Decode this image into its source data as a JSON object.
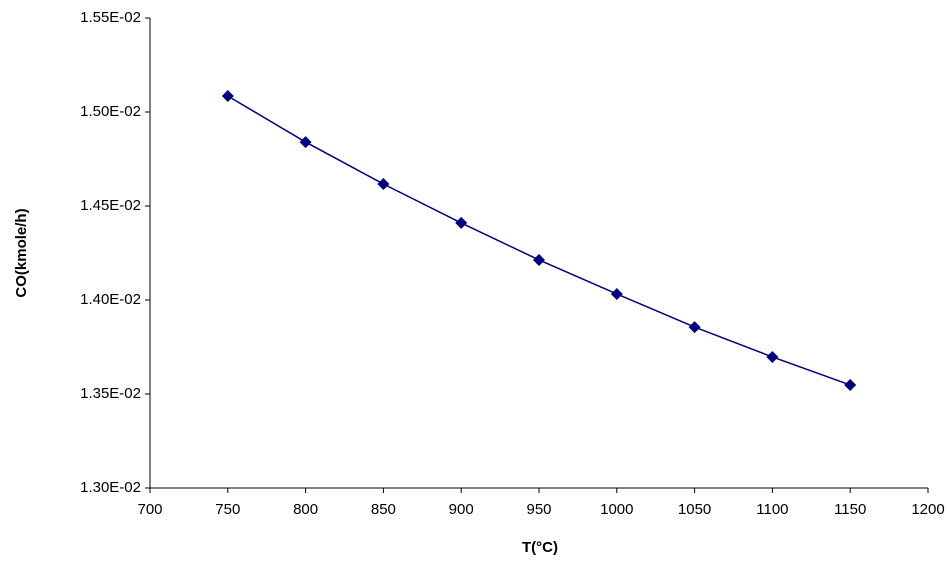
{
  "chart_data": {
    "type": "line",
    "x_label": "T(°C)",
    "y_label": "CO(kmole/h)",
    "x": [
      750,
      800,
      850,
      900,
      950,
      1000,
      1050,
      1100,
      1150
    ],
    "series": [
      {
        "name": "CO",
        "color": "#000080",
        "values": [
          0.015085,
          0.01484,
          0.014617,
          0.01441,
          0.014213,
          0.014032,
          0.013856,
          0.013697,
          0.013548
        ]
      }
    ],
    "xlim": [
      700,
      1200
    ],
    "xticks": [
      700,
      750,
      800,
      850,
      900,
      950,
      1000,
      1050,
      1100,
      1150,
      1200
    ],
    "ylim": [
      0.013,
      0.0155
    ],
    "yticks": [
      {
        "value": 0.013,
        "label": "1.30E-02"
      },
      {
        "value": 0.0135,
        "label": "1.35E-02"
      },
      {
        "value": 0.014,
        "label": "1.40E-02"
      },
      {
        "value": 0.0145,
        "label": "1.45E-02"
      },
      {
        "value": 0.015,
        "label": "1.50E-02"
      },
      {
        "value": 0.0155,
        "label": "1.55E-02"
      }
    ],
    "grid": false
  }
}
